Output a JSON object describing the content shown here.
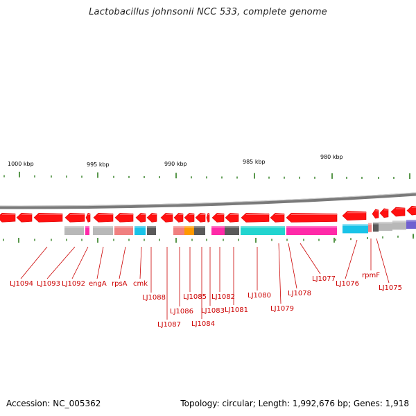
{
  "title": "Lactobacillus johnsonii NCC 533, complete genome",
  "accession": "Accession: NC_005362",
  "summary": "Topology: circular; Length: 1,992,676 bp; Genes: 1,918",
  "scale_labels": [
    "1000 kbp",
    "995 kbp",
    "990 kbp",
    "985 kbp",
    "980 kbp"
  ],
  "gene_labels": [
    "LJ1094",
    "LJ1093",
    "LJ1092",
    "engA",
    "rpsA",
    "cmk",
    "LJ1088",
    "LJ1087",
    "LJ1086",
    "LJ1085",
    "LJ1084",
    "LJ1083",
    "LJ1082",
    "LJ1081",
    "LJ1080",
    "LJ1079",
    "LJ1078",
    "LJ1077",
    "LJ1076",
    "rpmF",
    "LJ1075"
  ],
  "colors": {
    "gene": "#ff1010",
    "label": "#cc0000",
    "tick": "#2e7d1e",
    "backbone": "#777777",
    "cog_gray": "#b8b8b8",
    "cog_magenta": "#ff2aa8",
    "cog_salmon": "#f08080",
    "cog_cyan": "#19c3e8",
    "cog_darkgray": "#5a5a5a",
    "cog_orange": "#ff9900",
    "cog_teal": "#22d4cf",
    "cog_purple": "#7060d0"
  }
}
